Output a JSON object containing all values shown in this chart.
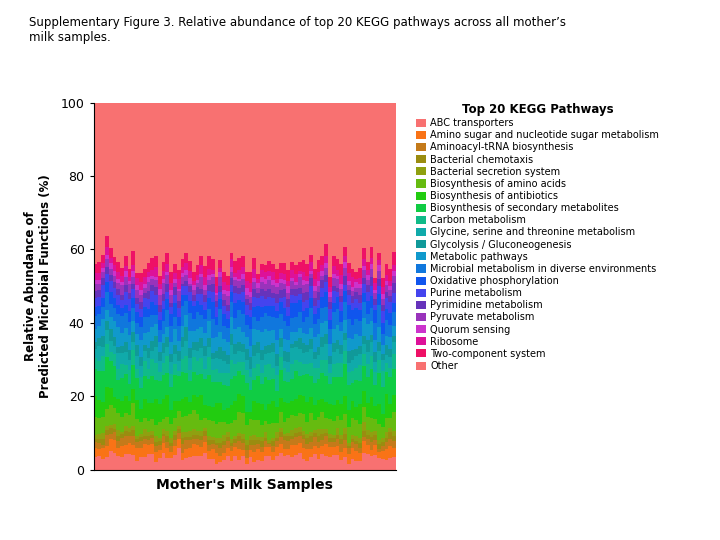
{
  "title": "Supplementary Figure 3. Relative abundance of top 20 KEGG pathways across all mother’s\nmilk samples.",
  "legend_title": "Top 20 KEGG Pathways",
  "xlabel": "Mother's Milk Samples",
  "ylabel": "Relative Abundance of\nPredicted Microbial Functions (%)",
  "ylim": [
    0,
    100
  ],
  "n_samples": 80,
  "categories": [
    "ABC transporters",
    "Amino sugar and nucleotide sugar metabolism",
    "Aminoacyl-tRNA biosynthesis",
    "Bacterial chemotaxis",
    "Bacterial secretion system",
    "Biosynthesis of amino acids",
    "Biosynthesis of antibiotics",
    "Biosynthesis of secondary metabolites",
    "Carbon metabolism",
    "Glycine, serine and threonine metabolism",
    "Glycolysis / Gluconeogenesis",
    "Metabolic pathways",
    "Microbial metabolism in diverse environments",
    "Oxidative phosphorylation",
    "Purine metabolism",
    "Pyrimidine metabolism",
    "Pyruvate metabolism",
    "Quorum sensing",
    "Ribosome",
    "Two-component system",
    "Other"
  ],
  "colors": [
    "#F87171",
    "#F97316",
    "#C47A1A",
    "#9A8C10",
    "#8FA010",
    "#66BB10",
    "#22CC10",
    "#10CC44",
    "#10BB88",
    "#10AAAA",
    "#109999",
    "#1099CC",
    "#1077DD",
    "#1055EE",
    "#4444EE",
    "#6633BB",
    "#9933BB",
    "#CC33CC",
    "#DD1199",
    "#EE1166",
    "#F87171"
  ],
  "mean_fractions": [
    3.5,
    2.5,
    1.8,
    1.2,
    1.2,
    4.0,
    4.5,
    6.5,
    3.5,
    3.0,
    2.5,
    3.5,
    4.0,
    3.0,
    2.5,
    1.8,
    1.8,
    1.2,
    1.8,
    2.5,
    43.2
  ],
  "noise_scales": [
    0.8,
    0.5,
    0.4,
    0.3,
    0.3,
    0.8,
    0.9,
    1.2,
    0.7,
    0.6,
    0.5,
    0.7,
    0.8,
    0.6,
    0.5,
    0.4,
    0.4,
    0.3,
    0.4,
    0.5,
    3.0
  ],
  "background_color": "#ffffff"
}
